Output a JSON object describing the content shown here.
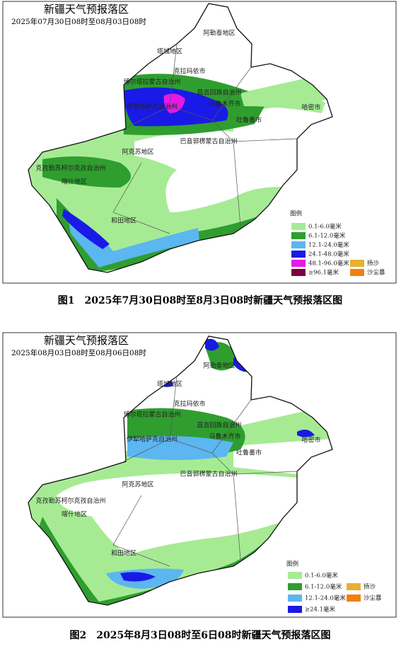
{
  "figures": [
    {
      "title": "新疆天气预报落区",
      "subtitle": "2025年07月30日08时至08月03日08时",
      "regions": [
        "阿勒泰地区",
        "塔城地区",
        "克拉玛依市",
        "博尔塔拉蒙古自治州",
        "昌吉回族自治州",
        "伊犁哈萨克自治州",
        "乌鲁木齐市",
        "哈密市",
        "吐鲁番市",
        "巴音郭楞蒙古自治州",
        "阿克苏地区",
        "克孜勒苏柯尔克孜自治州",
        "喀什地区",
        "和田地区"
      ],
      "legend": {
        "title": "图例",
        "items": [
          {
            "label": "0.1-6.0毫米",
            "color": "#a6eb94"
          },
          {
            "label": "6.1-12.0毫米",
            "color": "#2f9e2f"
          },
          {
            "label": "12.1-24.0毫米",
            "color": "#5cb6f0"
          },
          {
            "label": "24.1-48.0毫米",
            "color": "#1a1ae6"
          },
          {
            "label": "48.1-96.0毫米",
            "color": "#e619e6"
          },
          {
            "label": "≥96.1毫米",
            "color": "#800040"
          },
          {
            "label": "扬沙",
            "color": "#e8b030"
          },
          {
            "label": "沙尘暴",
            "color": "#f08010"
          }
        ]
      },
      "caption": "图1　2025年7月30日08时至8月3日08时新疆天气预报落区图"
    },
    {
      "title": "新疆天气预报落区",
      "subtitle": "2025年08月03日08时至08月06日08时",
      "regions": [
        "阿勒泰地区",
        "塔城地区",
        "克拉玛依市",
        "博尔塔拉蒙古自治州",
        "昌吉回族自治州",
        "伊犁哈萨克自治州",
        "乌鲁木齐市",
        "哈密市",
        "吐鲁番市",
        "巴音郭楞蒙古自治州",
        "阿克苏地区",
        "克孜勒苏柯尔克孜自治州",
        "喀什地区",
        "和田地区"
      ],
      "legend": {
        "title": "图例",
        "items": [
          {
            "label": "0.1-6.0毫米",
            "color": "#a6eb94"
          },
          {
            "label": "6.1-12.0毫米",
            "color": "#2f9e2f"
          },
          {
            "label": "12.1-24.0毫米",
            "color": "#5cb6f0"
          },
          {
            "label": "≥24.1毫米",
            "color": "#1a1ae6"
          },
          {
            "label": "扬沙",
            "color": "#e8b030"
          },
          {
            "label": "沙尘暴",
            "color": "#f08010"
          }
        ]
      },
      "caption": "图2　2025年8月3日08时至6日08时新疆天气预报落区图"
    }
  ]
}
